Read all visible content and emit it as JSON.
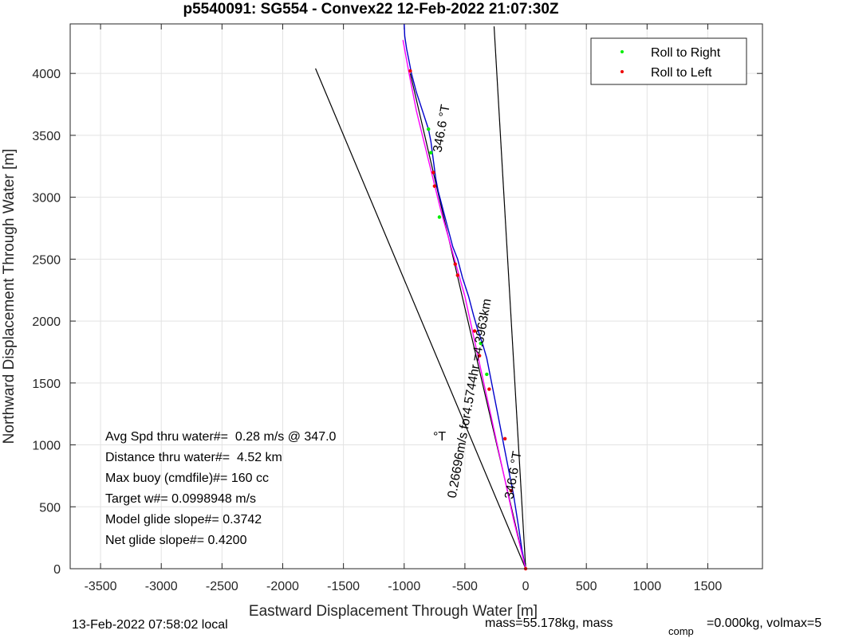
{
  "chart_data": {
    "type": "line",
    "title": "p5540091: SG554 - Convex22 12-Feb-2022 21:07:30Z",
    "xlabel": "Eastward Displacement Through Water [m]",
    "ylabel": "Northward Displacement Through Water [m]",
    "xlim": [
      -3750,
      1950
    ],
    "ylim": [
      0,
      4400
    ],
    "xticks": [
      -3500,
      -3000,
      -2500,
      -2000,
      -1500,
      -1000,
      -500,
      0,
      500,
      1000,
      1500
    ],
    "yticks": [
      0,
      500,
      1000,
      1500,
      2000,
      2500,
      3000,
      3500,
      4000
    ],
    "grid": true,
    "legend": {
      "placement": "top-right",
      "entries": [
        {
          "label": "Roll to Right",
          "color": "#00ee00"
        },
        {
          "label": "Roll to Left",
          "color": "#ee0000"
        }
      ]
    },
    "series": [
      {
        "kind": "track",
        "color": "#0000cc",
        "x": [
          0,
          -30,
          -60,
          -100,
          -140,
          -180,
          -220,
          -260,
          -300,
          -320,
          -350,
          -400,
          -430,
          -470,
          -520,
          -560,
          -600,
          -640,
          -680,
          -720,
          -740,
          -760,
          -780,
          -800,
          -850,
          -900,
          -940,
          -960,
          -980,
          -995,
          -1000
        ],
        "y": [
          0,
          150,
          350,
          600,
          800,
          1000,
          1200,
          1400,
          1600,
          1700,
          1800,
          1950,
          2050,
          2200,
          2350,
          2500,
          2600,
          2750,
          2900,
          3050,
          3150,
          3300,
          3450,
          3550,
          3700,
          3850,
          4000,
          4100,
          4200,
          4300,
          4400
        ]
      },
      {
        "kind": "depth-averaged",
        "color": "#ff00ff",
        "x": [
          0,
          -100,
          -200,
          -300,
          -400,
          -500,
          -600,
          -700,
          -800,
          -900,
          -960,
          -1010
        ],
        "y": [
          0,
          400,
          850,
          1300,
          1750,
          2200,
          2550,
          2900,
          3300,
          3700,
          4000,
          4270
        ]
      },
      {
        "kind": "heading-line",
        "color": "#000000",
        "x": [
          0,
          -1730
        ],
        "y": [
          0,
          4040
        ]
      },
      {
        "kind": "heading-line",
        "color": "#000000",
        "x": [
          0,
          -260
        ],
        "y": [
          0,
          4380
        ]
      },
      {
        "kind": "heading-line",
        "color": "#000000",
        "x": [
          0,
          -950
        ],
        "y": [
          0,
          4000
        ]
      }
    ],
    "points": [
      {
        "x": -950,
        "y": 4020,
        "roll": "left"
      },
      {
        "x": -800,
        "y": 3550,
        "roll": "right"
      },
      {
        "x": -780,
        "y": 3360,
        "roll": "right"
      },
      {
        "x": -760,
        "y": 3200,
        "roll": "left"
      },
      {
        "x": -750,
        "y": 3090,
        "roll": "left"
      },
      {
        "x": -710,
        "y": 2840,
        "roll": "right"
      },
      {
        "x": -580,
        "y": 2460,
        "roll": "left"
      },
      {
        "x": -560,
        "y": 2370,
        "roll": "left"
      },
      {
        "x": -420,
        "y": 1920,
        "roll": "left"
      },
      {
        "x": -370,
        "y": 1820,
        "roll": "right"
      },
      {
        "x": -380,
        "y": 1720,
        "roll": "left"
      },
      {
        "x": -320,
        "y": 1570,
        "roll": "right"
      },
      {
        "x": -300,
        "y": 1450,
        "roll": "left"
      },
      {
        "x": -170,
        "y": 1050,
        "roll": "left"
      },
      {
        "x": -120,
        "y": 630,
        "roll": "left"
      },
      {
        "x": 0,
        "y": 0,
        "roll": "left"
      }
    ],
    "annotations": [
      {
        "text": "346.6 °T",
        "x": -660,
        "y": 3550,
        "rotate": -80
      },
      {
        "text": "0.26696m/s for4.5744hr =4.3963km",
        "x": -430,
        "y": 1370,
        "rotate": -80
      },
      {
        "text": "346.6 °T",
        "x": -70,
        "y": 750,
        "rotate": -80
      }
    ],
    "stats": [
      "Avg Spd thru water#=  0.28 m/s @ 347.0",
      "Distance thru water#=  4.52 km",
      "Max buoy (cmdfile)#= 160 cc",
      "Target w#= 0.0998948 m/s",
      "Model glide slope#= 0.3742",
      "Net glide slope#= 0.4200"
    ],
    "stats_unit": "°T"
  },
  "footer": {
    "local_time": "13-Feb-2022 07:58:02 local",
    "mass": "mass=55.178kg, mass",
    "comp_sub": "comp",
    "comp_rest": "=0.000kg, volmax=5"
  }
}
